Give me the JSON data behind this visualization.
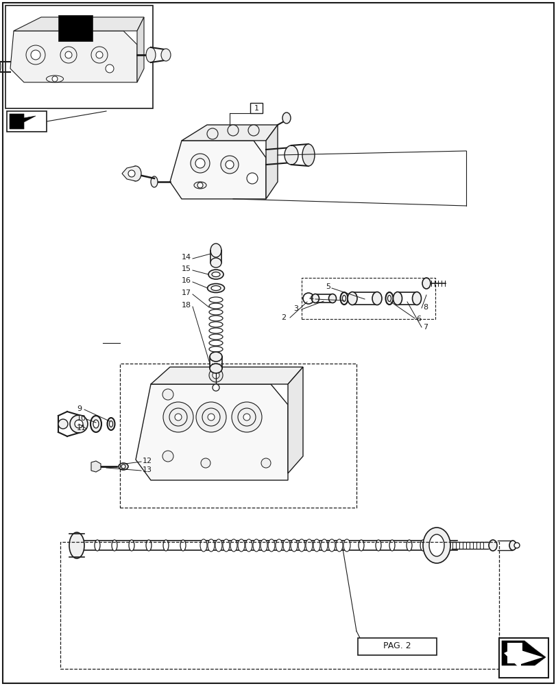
{
  "fig_width": 8.12,
  "fig_height": 10.0,
  "dpi": 100,
  "bg_color": "#ffffff",
  "lc": "#1a1a1a",
  "pag2_text": "PAG. 2"
}
